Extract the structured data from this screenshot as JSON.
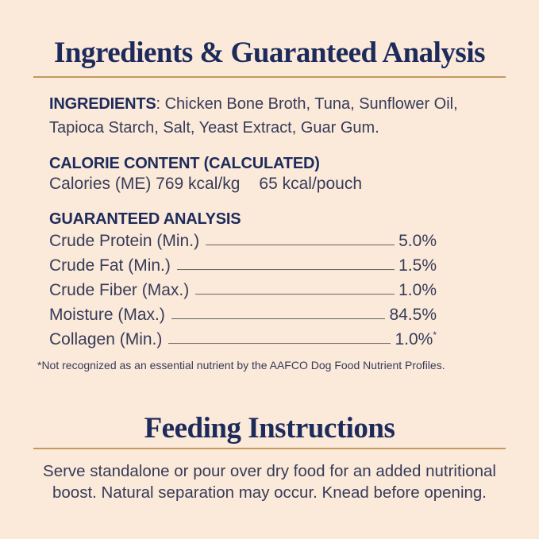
{
  "page": {
    "background_color": "#FBE9DA",
    "title_color": "#1D2B5B",
    "text_color": "#363C58",
    "accent_line_color": "#C3995E"
  },
  "ingredients_analysis": {
    "title": "Ingredients & Guaranteed Analysis",
    "ingredients": {
      "label": "INGREDIENTS",
      "text": ": Chicken Bone Broth, Tuna, Sunflower Oil, Tapioca Starch, Salt, Yeast Extract, Guar Gum."
    },
    "calorie_content": {
      "heading": "CALORIE CONTENT (CALCULATED)",
      "per_kg": "Calories (ME) 769 kcal/kg",
      "per_pouch": "65 kcal/pouch"
    },
    "guaranteed_analysis": {
      "heading": "GUARANTEED ANALYSIS",
      "rows": [
        {
          "label": "Crude Protein (Min.)",
          "value": "5.0%",
          "asterisk": ""
        },
        {
          "label": "Crude Fat (Min.)",
          "value": "1.5%",
          "asterisk": ""
        },
        {
          "label": "Crude Fiber (Max.)",
          "value": "1.0%",
          "asterisk": ""
        },
        {
          "label": "Moisture (Max.)",
          "value": "84.5%",
          "asterisk": ""
        },
        {
          "label": "Collagen (Min.)",
          "value": "1.0%",
          "asterisk": "*"
        }
      ],
      "footnote": "*Not recognized as an essential nutrient by the AAFCO Dog Food Nutrient Profiles."
    }
  },
  "feeding_instructions": {
    "title": "Feeding Instructions",
    "body": "Serve standalone or pour over dry food for an added nutritional boost. Natural separation may occur. Knead before opening."
  }
}
